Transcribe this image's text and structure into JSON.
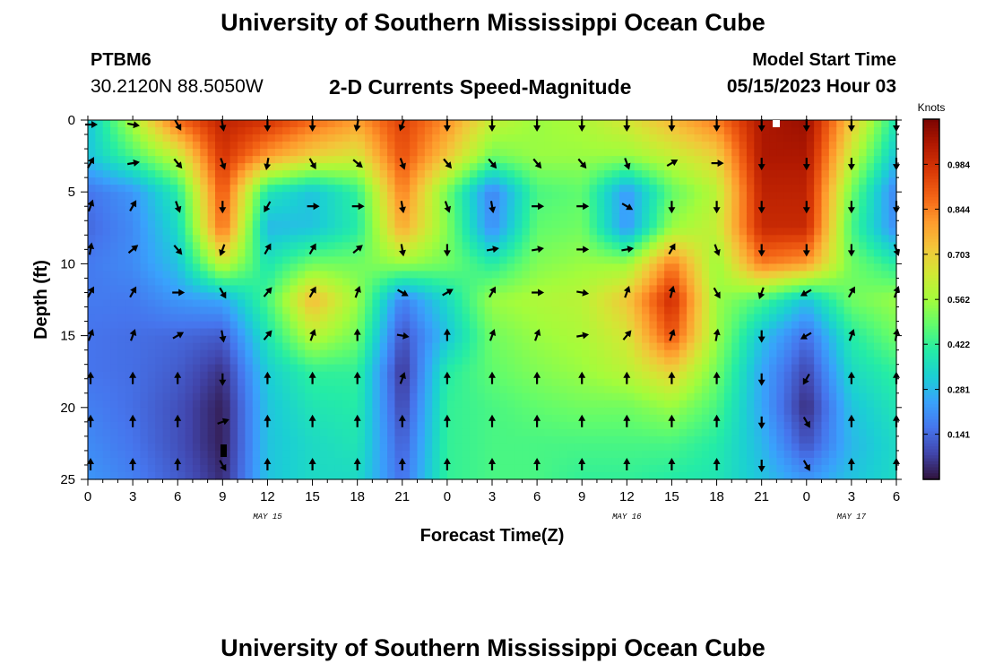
{
  "header": {
    "title": "University of Southern Mississippi Ocean Cube",
    "station_id": "PTBM6",
    "coords": "30.2120N  88.5050W",
    "chart_title": "2-D Currents Speed-Magnitude",
    "model_label": "Model Start Time",
    "model_time": "05/15/2023 Hour 03"
  },
  "footer": {
    "title": "University of Southern Mississippi Ocean Cube"
  },
  "chart_data": {
    "type": "heatmap",
    "title": "2-D Currents Speed-Magnitude",
    "xlabel": "Forecast Time(Z)",
    "ylabel": "Depth (ft)",
    "x_tick_labels": [
      "0",
      "3",
      "6",
      "9",
      "12",
      "15",
      "18",
      "21",
      "0",
      "3",
      "6",
      "9",
      "12",
      "15",
      "18",
      "21",
      "0",
      "3",
      "6"
    ],
    "x_range_hours": [
      0,
      54
    ],
    "date_labels": [
      {
        "text": "MAY 15",
        "hour": 12
      },
      {
        "text": "MAY 16",
        "hour": 36
      },
      {
        "text": "MAY 17",
        "hour": 51
      }
    ],
    "y_tick_labels": [
      "0",
      "5",
      "10",
      "15",
      "20",
      "25"
    ],
    "ylim": [
      0,
      25
    ],
    "y_inverted": true,
    "colorbar": {
      "title": "Knots",
      "range": [
        0,
        1.125
      ],
      "ticks": [
        "0.984",
        "0.844",
        "0.703",
        "0.562",
        "0.422",
        "0.281",
        "0.141"
      ],
      "tick_values": [
        0.984,
        0.844,
        0.703,
        0.562,
        0.422,
        0.281,
        0.141
      ],
      "colormap": [
        "#30123b",
        "#4145ab",
        "#4675ed",
        "#39a2fc",
        "#1bcfd4",
        "#24eca6",
        "#61fc6c",
        "#a4fc3b",
        "#d1e834",
        "#f3c63a",
        "#fe9b2d",
        "#f36315",
        "#d93806",
        "#b11901",
        "#7a0402"
      ]
    },
    "speed_grid": {
      "times_hours": [
        0,
        3,
        6,
        9,
        12,
        15,
        18,
        21,
        24,
        27,
        30,
        33,
        36,
        39,
        42,
        45,
        48,
        51,
        54
      ],
      "depths_ft": [
        0,
        2.5,
        5,
        7.5,
        10,
        12.5,
        15,
        17.5,
        20,
        22.5,
        25
      ],
      "values_knots": [
        [
          0.3,
          0.58,
          0.88,
          1.02,
          0.98,
          0.88,
          0.8,
          0.95,
          0.82,
          0.62,
          0.55,
          0.58,
          0.65,
          0.75,
          0.85,
          1.05,
          1.08,
          0.72,
          0.38
        ],
        [
          0.3,
          0.45,
          0.62,
          0.98,
          0.8,
          0.7,
          0.65,
          0.92,
          0.72,
          0.5,
          0.55,
          0.55,
          0.55,
          0.62,
          0.7,
          1.05,
          1.05,
          0.62,
          0.3
        ],
        [
          0.16,
          0.22,
          0.4,
          0.92,
          0.38,
          0.3,
          0.42,
          0.85,
          0.5,
          0.18,
          0.45,
          0.48,
          0.22,
          0.48,
          0.6,
          1.02,
          1.02,
          0.5,
          0.18
        ],
        [
          0.14,
          0.2,
          0.35,
          0.88,
          0.28,
          0.3,
          0.4,
          0.78,
          0.52,
          0.2,
          0.48,
          0.5,
          0.22,
          0.55,
          0.62,
          1.0,
          1.0,
          0.45,
          0.2
        ],
        [
          0.17,
          0.2,
          0.3,
          0.62,
          0.38,
          0.5,
          0.5,
          0.55,
          0.5,
          0.4,
          0.52,
          0.55,
          0.55,
          0.85,
          0.55,
          0.85,
          0.8,
          0.5,
          0.4
        ],
        [
          0.17,
          0.17,
          0.22,
          0.25,
          0.45,
          0.75,
          0.55,
          0.18,
          0.35,
          0.55,
          0.58,
          0.6,
          0.72,
          1.0,
          0.55,
          0.45,
          0.3,
          0.5,
          0.55
        ],
        [
          0.16,
          0.15,
          0.14,
          0.12,
          0.38,
          0.6,
          0.5,
          0.1,
          0.3,
          0.5,
          0.55,
          0.58,
          0.65,
          0.92,
          0.55,
          0.3,
          0.15,
          0.4,
          0.5
        ],
        [
          0.16,
          0.15,
          0.12,
          0.05,
          0.32,
          0.42,
          0.42,
          0.05,
          0.4,
          0.48,
          0.52,
          0.55,
          0.6,
          0.7,
          0.5,
          0.25,
          0.08,
          0.35,
          0.42
        ],
        [
          0.18,
          0.15,
          0.1,
          0.02,
          0.3,
          0.38,
          0.4,
          0.08,
          0.42,
          0.45,
          0.48,
          0.5,
          0.5,
          0.55,
          0.45,
          0.25,
          0.04,
          0.3,
          0.38
        ],
        [
          0.2,
          0.16,
          0.1,
          0.02,
          0.3,
          0.35,
          0.38,
          0.12,
          0.42,
          0.45,
          0.45,
          0.45,
          0.45,
          0.45,
          0.4,
          0.28,
          0.1,
          0.28,
          0.35
        ],
        [
          0.22,
          0.18,
          0.12,
          0.04,
          0.3,
          0.35,
          0.35,
          0.15,
          0.42,
          0.45,
          0.45,
          0.42,
          0.42,
          0.4,
          0.38,
          0.3,
          0.22,
          0.3,
          0.35
        ]
      ]
    },
    "arrow_grid": {
      "times_hours": [
        0,
        3,
        6,
        9,
        12,
        15,
        18,
        21,
        24,
        27,
        30,
        33,
        36,
        39,
        42,
        45,
        48,
        51,
        54
      ],
      "depths_ft": [
        0,
        3,
        6,
        9,
        12,
        15,
        18,
        21,
        24
      ],
      "directions_deg": [
        [
          90,
          100,
          150,
          170,
          180,
          180,
          190,
          200,
          180,
          180,
          180,
          180,
          180,
          180,
          180,
          180,
          180,
          180,
          180
        ],
        [
          30,
          80,
          140,
          160,
          190,
          150,
          130,
          160,
          140,
          140,
          140,
          140,
          160,
          60,
          90,
          180,
          180,
          180,
          180
        ],
        [
          20,
          30,
          160,
          180,
          210,
          90,
          90,
          170,
          160,
          170,
          90,
          90,
          120,
          180,
          180,
          180,
          180,
          180,
          180
        ],
        [
          10,
          50,
          140,
          200,
          30,
          30,
          50,
          170,
          180,
          80,
          80,
          90,
          80,
          30,
          160,
          180,
          180,
          180,
          160
        ],
        [
          30,
          30,
          90,
          150,
          40,
          30,
          20,
          120,
          60,
          30,
          90,
          100,
          20,
          15,
          150,
          200,
          240,
          30,
          20
        ],
        [
          20,
          20,
          60,
          170,
          40,
          20,
          0,
          100,
          0,
          20,
          20,
          80,
          40,
          20,
          10,
          180,
          240,
          20,
          10
        ],
        [
          0,
          0,
          0,
          180,
          0,
          0,
          0,
          20,
          0,
          0,
          0,
          0,
          0,
          0,
          0,
          180,
          210,
          0,
          0
        ],
        [
          0,
          0,
          0,
          70,
          0,
          0,
          0,
          0,
          0,
          0,
          0,
          0,
          0,
          0,
          0,
          180,
          150,
          0,
          0
        ],
        [
          0,
          0,
          0,
          150,
          0,
          0,
          0,
          0,
          0,
          0,
          0,
          0,
          0,
          0,
          0,
          180,
          150,
          0,
          0
        ]
      ]
    }
  }
}
